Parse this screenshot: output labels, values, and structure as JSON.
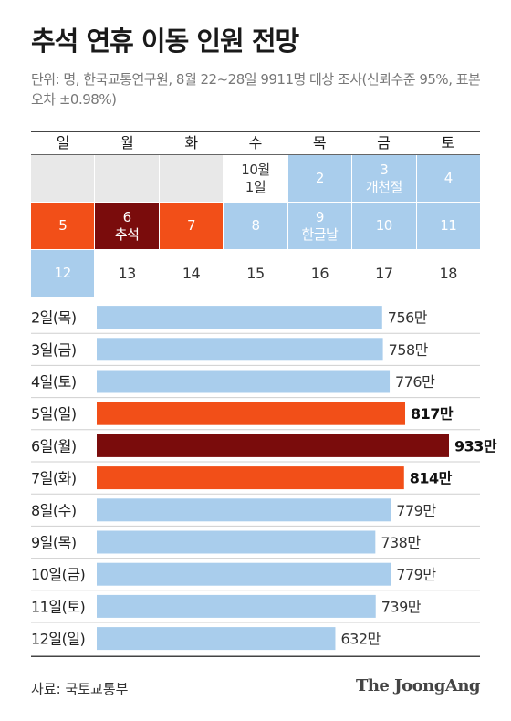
{
  "title": "추석 연휴 이동 인원 전망",
  "subtitle": "단위: 명, 한국교통연구원, 8월 22~28일 9911명 대상 조사(신뢰수준 95%, 표본오차 ±0.98%)",
  "calendar": {
    "weekdays": [
      "일",
      "월",
      "화",
      "수",
      "목",
      "금",
      "토"
    ],
    "rows": [
      [
        {
          "lines": [
            ""
          ],
          "style": "empty"
        },
        {
          "lines": [
            ""
          ],
          "style": "empty"
        },
        {
          "lines": [
            ""
          ],
          "style": "empty"
        },
        {
          "lines": [
            "10월",
            "1일"
          ],
          "style": "white"
        },
        {
          "lines": [
            "2"
          ],
          "style": "blue"
        },
        {
          "lines": [
            "3",
            "개천절"
          ],
          "style": "blue"
        },
        {
          "lines": [
            "4"
          ],
          "style": "blue"
        }
      ],
      [
        {
          "lines": [
            "5"
          ],
          "style": "orange"
        },
        {
          "lines": [
            "6",
            "추석"
          ],
          "style": "dark"
        },
        {
          "lines": [
            "7"
          ],
          "style": "orange"
        },
        {
          "lines": [
            "8"
          ],
          "style": "blue"
        },
        {
          "lines": [
            "9",
            "한글날"
          ],
          "style": "blue"
        },
        {
          "lines": [
            "10"
          ],
          "style": "blue"
        },
        {
          "lines": [
            "11"
          ],
          "style": "blue"
        }
      ],
      [
        {
          "lines": [
            "12"
          ],
          "style": "blue"
        },
        {
          "lines": [
            "13"
          ],
          "style": "plain"
        },
        {
          "lines": [
            "14"
          ],
          "style": "plain"
        },
        {
          "lines": [
            "15"
          ],
          "style": "plain"
        },
        {
          "lines": [
            "16"
          ],
          "style": "plain"
        },
        {
          "lines": [
            "17"
          ],
          "style": "plain"
        },
        {
          "lines": [
            "18"
          ],
          "style": "plain"
        }
      ]
    ]
  },
  "chart_data": {
    "type": "bar",
    "orientation": "horizontal",
    "categories": [
      "2일(목)",
      "3일(금)",
      "4일(토)",
      "5일(일)",
      "6일(월)",
      "7일(화)",
      "8일(수)",
      "9일(목)",
      "10일(금)",
      "11일(토)",
      "12일(일)"
    ],
    "values": [
      756,
      758,
      776,
      817,
      933,
      814,
      779,
      738,
      779,
      739,
      632
    ],
    "value_labels": [
      "756만",
      "758만",
      "776만",
      "817만",
      "933만",
      "814만",
      "779만",
      "738만",
      "779만",
      "739만",
      "632만"
    ],
    "highlight": [
      "normal",
      "normal",
      "normal",
      "orange",
      "dark",
      "orange",
      "normal",
      "normal",
      "normal",
      "normal",
      "normal"
    ],
    "colors": {
      "normal": "#a9cdec",
      "orange": "#f24f18",
      "dark": "#7a0c0c"
    },
    "xlim": [
      0,
      933
    ]
  },
  "source": "자료: 국토교통부",
  "logo": "The JoongAng"
}
